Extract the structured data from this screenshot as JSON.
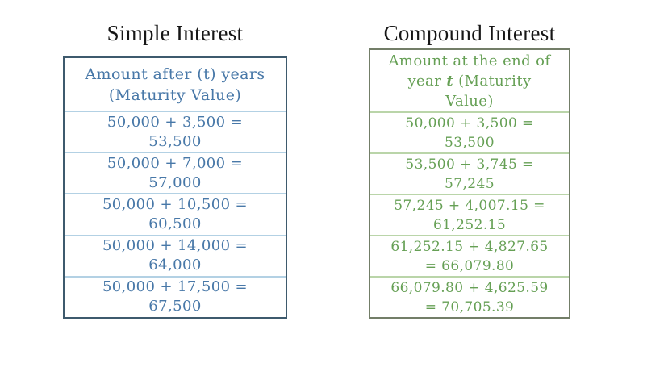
{
  "chart_data": [
    {
      "type": "table",
      "title": "Simple Interest",
      "columns": [
        "Amount after (t) years (Maturity Value)"
      ],
      "rows": [
        "50,000 + 3,500 = 53,500",
        "50,000 + 7,000 = 57,000",
        "50,000 + 10,500 = 60,500",
        "50,000 + 14,000 = 64,000",
        "50,000 + 17,500 = 67,500"
      ],
      "text_color": "#4878a8",
      "border_color": "#3e5a6d",
      "separator_color": "#b3d1e4"
    },
    {
      "type": "table",
      "title": "Compound Interest",
      "columns": [
        "Amount at the end of year t (Maturity Value)"
      ],
      "rows": [
        "50,000 + 3,500 = 53,500",
        "53,500 + 3,745 = 57,245",
        "57,245 + 4,007.15 = 61,252.15",
        "61,252.15 + 4,827.65 = 66,079.80",
        "66,079.80 + 4,625.59 = 70,705.39"
      ],
      "text_color": "#66a055",
      "border_color": "#737e68",
      "separator_color": "#bad5a9"
    }
  ],
  "simple_interest": {
    "title": "Simple Interest",
    "header_lines": [
      "Amount after (t) years",
      "(Maturity Value)"
    ],
    "rows": [
      [
        "50,000 + 3,500 =",
        "53,500"
      ],
      [
        "50,000 + 7,000 =",
        "57,000"
      ],
      [
        "50,000 + 10,500 =",
        "60,500"
      ],
      [
        "50,000 + 14,000 =",
        "64,000"
      ],
      [
        "50,000 + 17,500 =",
        "67,500"
      ]
    ]
  },
  "compound_interest": {
    "title": "Compound Interest",
    "header_lines": [
      {
        "text": "Amount at the end of"
      },
      {
        "pre": "year ",
        "t": "t",
        "post": " (Maturity"
      },
      {
        "text": "Value)"
      }
    ],
    "rows": [
      [
        "50,000 + 3,500 =",
        "53,500"
      ],
      [
        "53,500 + 3,745 =",
        "57,245"
      ],
      [
        "57,245 + 4,007.15 =",
        "61,252.15"
      ],
      [
        "61,252.15 + 4,827.65",
        "= 66,079.80"
      ],
      [
        "66,079.80 + 4,625.59",
        "= 70,705.39"
      ]
    ]
  }
}
